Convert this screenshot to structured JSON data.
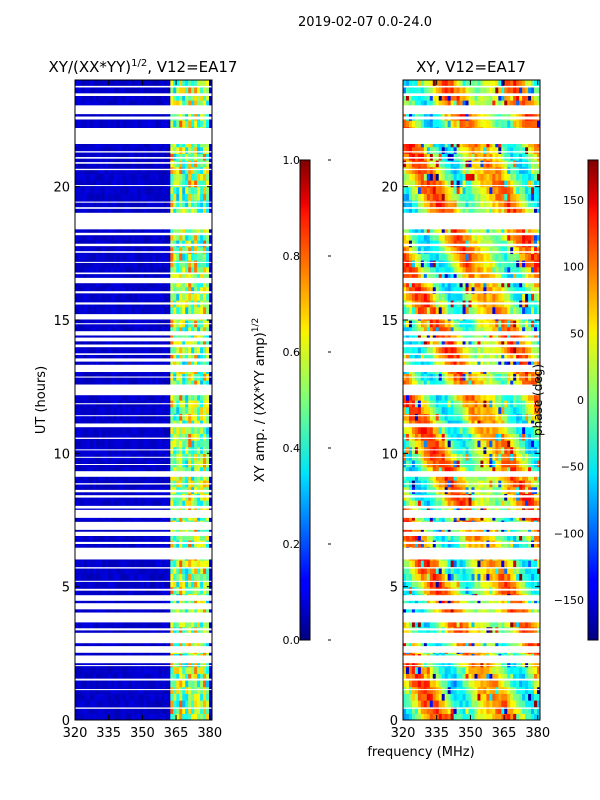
{
  "chart_data": [
    {
      "type": "heatmap",
      "suptitle": "2019-02-07 0.0-24.0",
      "title": "XY/(XX*YY)",
      "title_exponent": "1/2",
      "title_suffix": ", V12=EA17",
      "ylabel": "UT (hours)",
      "xlabel": "",
      "xlim": [
        320,
        381
      ],
      "ylim": [
        0,
        24
      ],
      "xticks": [
        320,
        335,
        350,
        365,
        380
      ],
      "yticks": [
        0,
        5,
        10,
        15,
        20
      ],
      "rfi_band_mhz": [
        362,
        380
      ],
      "colorbar": {
        "label": "XY amp. / (XX*YY amp)",
        "label_exponent": "1/2",
        "range": [
          0.0,
          1.0
        ],
        "ticks": [
          "0.0",
          "0.2",
          "0.4",
          "0.6",
          "0.8",
          "1.0"
        ],
        "colormap": "jet"
      }
    },
    {
      "type": "heatmap",
      "title": "XY, V12=EA17",
      "ylabel": "",
      "xlabel": "frequency (MHz)",
      "xlim": [
        320,
        381
      ],
      "ylim": [
        0,
        24
      ],
      "xticks": [
        320,
        335,
        350,
        365,
        380
      ],
      "yticks": [
        0,
        5,
        10,
        15,
        20
      ],
      "colorbar": {
        "label": "phase (deg)",
        "range": [
          -180,
          180
        ],
        "ticks": [
          "-150",
          "-100",
          "-50",
          "0",
          "50",
          "100",
          "150"
        ],
        "colormap": "jet"
      }
    }
  ],
  "flagged_ut_hours": [
    [
      0.42,
      0.47
    ],
    [
      1.12,
      1.16
    ],
    [
      1.48,
      1.55
    ],
    [
      2.02,
      2.06
    ],
    [
      2.13,
      2.42
    ],
    [
      2.52,
      2.77
    ],
    [
      2.88,
      3.27
    ],
    [
      3.36,
      3.44
    ],
    [
      3.66,
      4.03
    ],
    [
      4.15,
      4.38
    ],
    [
      4.47,
      4.68
    ],
    [
      4.85,
      4.92
    ],
    [
      5.18,
      5.22
    ],
    [
      5.68,
      5.73
    ],
    [
      6.02,
      6.46
    ],
    [
      6.6,
      6.68
    ],
    [
      6.9,
      7.06
    ],
    [
      7.13,
      7.43
    ],
    [
      7.58,
      7.88
    ],
    [
      7.93,
      8.03
    ],
    [
      8.34,
      8.43
    ],
    [
      8.54,
      8.63
    ],
    [
      8.83,
      8.88
    ],
    [
      9.12,
      9.33
    ],
    [
      9.57,
      9.6
    ],
    [
      9.84,
      9.87
    ],
    [
      10.12,
      10.15
    ],
    [
      10.54,
      10.59
    ],
    [
      10.98,
      11.12
    ],
    [
      11.4,
      11.43
    ],
    [
      11.84,
      11.88
    ],
    [
      12.18,
      12.58
    ],
    [
      12.84,
      12.88
    ],
    [
      13.05,
      13.32
    ],
    [
      13.44,
      13.56
    ],
    [
      13.69,
      13.75
    ],
    [
      13.98,
      14.08
    ],
    [
      14.2,
      14.34
    ],
    [
      14.42,
      14.58
    ],
    [
      14.84,
      14.88
    ],
    [
      15.02,
      15.22
    ],
    [
      15.58,
      15.66
    ],
    [
      16.0,
      16.08
    ],
    [
      16.38,
      16.58
    ],
    [
      16.72,
      16.78
    ],
    [
      17.14,
      17.18
    ],
    [
      17.52,
      17.58
    ],
    [
      17.77,
      17.86
    ],
    [
      18.18,
      18.27
    ],
    [
      18.4,
      19.02
    ],
    [
      19.17,
      19.23
    ],
    [
      19.4,
      19.44
    ],
    [
      20.03,
      20.06
    ],
    [
      20.62,
      20.67
    ],
    [
      20.86,
      20.92
    ],
    [
      21.05,
      21.11
    ],
    [
      21.28,
      21.33
    ],
    [
      21.6,
      22.2
    ],
    [
      22.52,
      22.63
    ],
    [
      22.72,
      23.05
    ],
    [
      23.4,
      23.5
    ],
    [
      23.72,
      23.78
    ]
  ]
}
